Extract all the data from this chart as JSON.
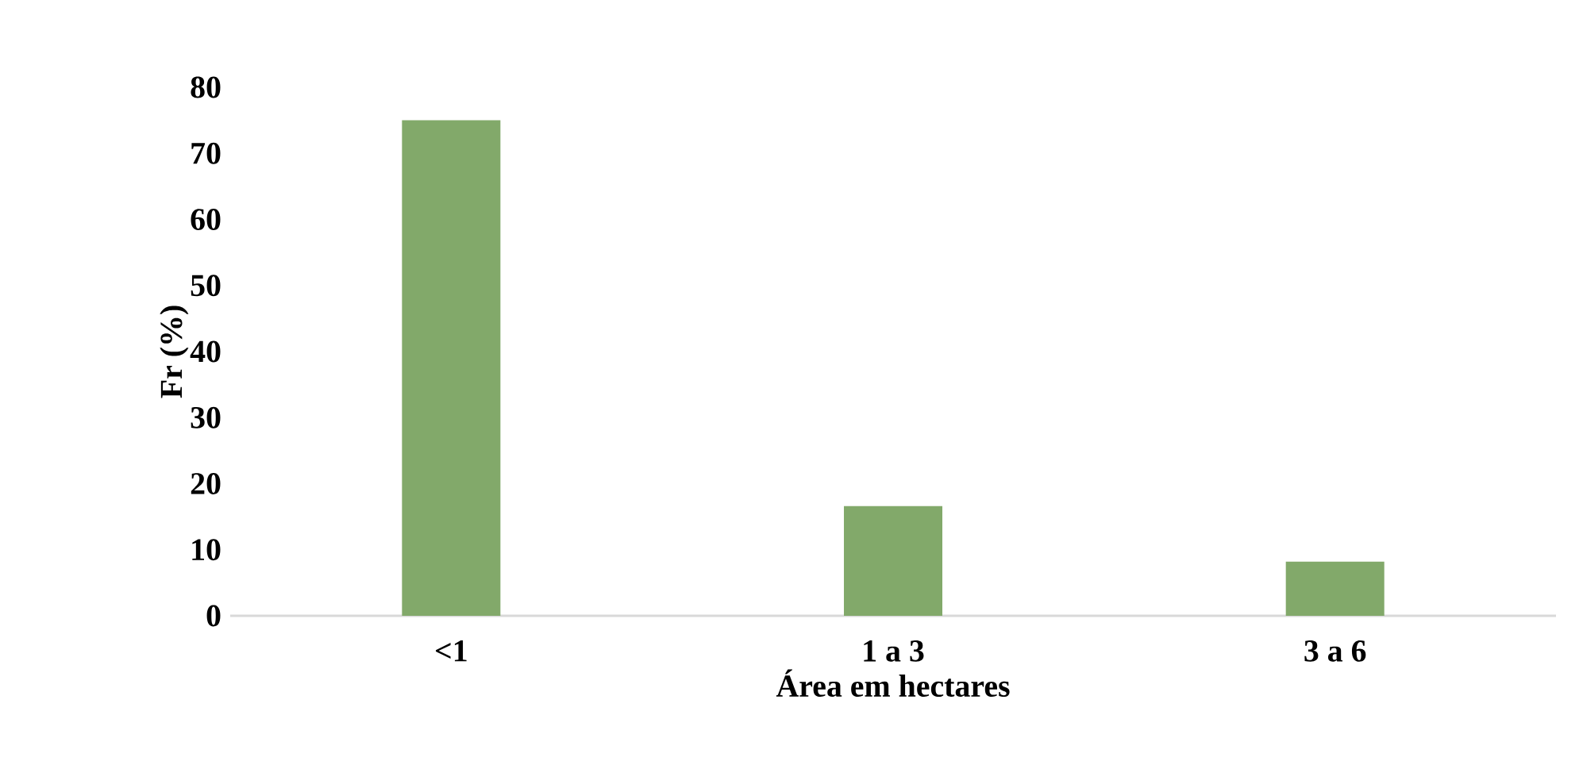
{
  "chart_data": {
    "type": "bar",
    "xlabel": "Área em hectares",
    "ylabel": "Fr (%)",
    "categories": [
      "<1",
      "1 a 3",
      "3 a 6"
    ],
    "values": [
      75,
      16.6,
      8.2
    ],
    "color": "#82a96a",
    "ylim": [
      0,
      80
    ],
    "yticks": [
      0,
      10,
      20,
      30,
      40,
      50,
      60,
      70,
      80
    ]
  }
}
